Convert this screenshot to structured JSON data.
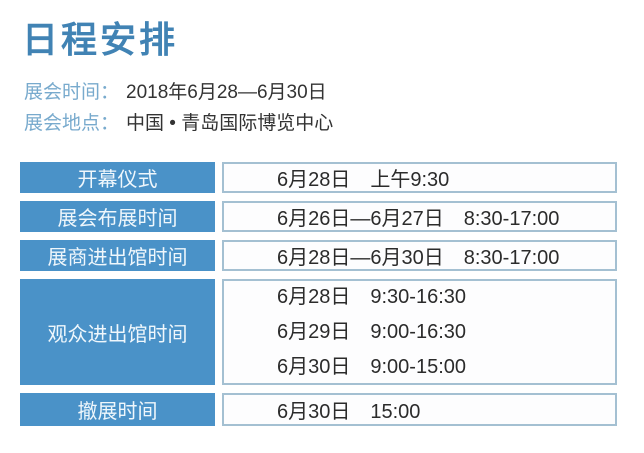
{
  "page": {
    "title": "日程安排"
  },
  "info": {
    "time_label": "展会时间：",
    "time_value": "2018年6月28—6月30日",
    "place_label": "展会地点：",
    "place_value": "中国 • 青岛国际博览中心"
  },
  "schedule": {
    "rows": [
      {
        "label": "开幕仪式",
        "times": [
          "6月28日　上午9:30"
        ]
      },
      {
        "label": "展会布展时间",
        "times": [
          "6月26日—6月27日　8:30-17:00"
        ]
      },
      {
        "label": "展商进出馆时间",
        "times": [
          "6月28日—6月30日　8:30-17:00"
        ]
      },
      {
        "label": "观众进出馆时间",
        "times": [
          "6月28日　9:30-16:30",
          "6月29日　9:00-16:30",
          "6月30日　9:00-15:00"
        ]
      },
      {
        "label": "撤展时间",
        "times": [
          "6月30日　15:00"
        ]
      }
    ]
  },
  "colors": {
    "accent_blue": "#4a92c8",
    "title_blue": "#4183b4",
    "label_blue": "#78aacd",
    "cell_border": "#a4c0d2",
    "text_dark": "#2b2b2b"
  }
}
